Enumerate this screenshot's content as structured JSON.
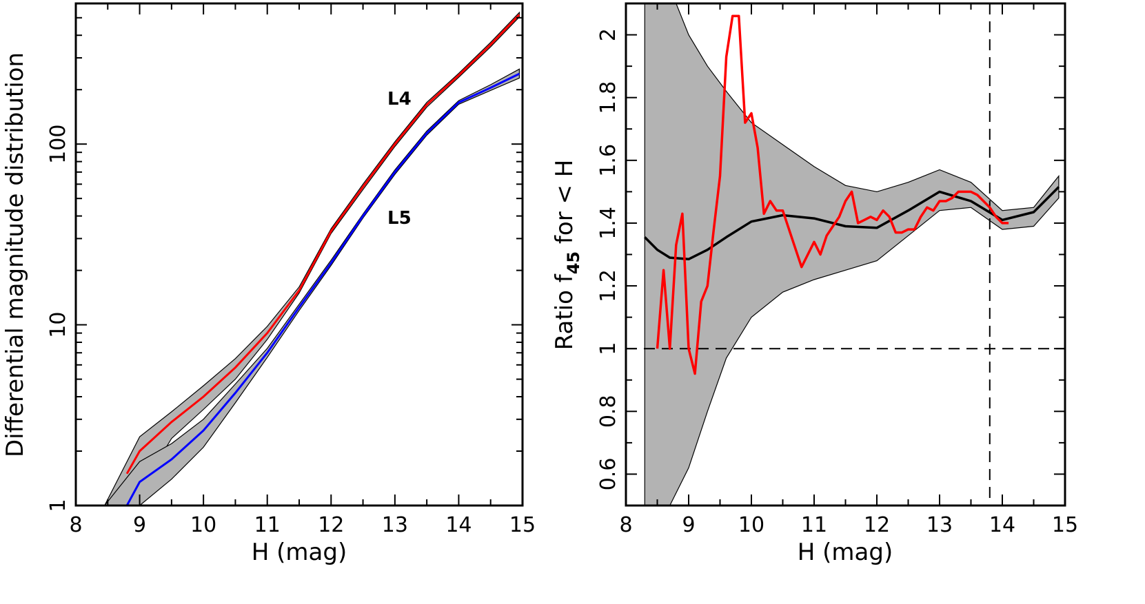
{
  "chart_data": [
    {
      "type": "line",
      "xlabel": "H (mag)",
      "ylabel": "Differential magnitude distribution",
      "xlim": [
        8,
        15
      ],
      "ylim": [
        1,
        600
      ],
      "yscale": "log",
      "xticks": [
        "8",
        "9",
        "10",
        "11",
        "12",
        "13",
        "14",
        "15"
      ],
      "yticks": [
        "1",
        "10",
        "100"
      ],
      "ytick_values": [
        1,
        10,
        100
      ],
      "annotations": [
        {
          "text": "L4",
          "x": 13.15,
          "y": 195
        },
        {
          "text": "L5",
          "x": 13.15,
          "y": 44
        }
      ],
      "series": [
        {
          "color": "#ff0000",
          "x": [
            8.8,
            9.0,
            9.5,
            10.0,
            10.5,
            11.0,
            11.5,
            12.0,
            12.5,
            13.0,
            13.5,
            14.0,
            14.5,
            14.95
          ],
          "y": [
            1.5,
            2.0,
            2.9,
            4.0,
            5.8,
            9.0,
            15.5,
            33,
            58,
            100,
            165,
            240,
            355,
            520
          ]
        },
        {
          "color": "#0000ff",
          "x": [
            8.8,
            9.0,
            9.5,
            10.0,
            10.5,
            11.0,
            11.5,
            12.0,
            12.5,
            13.0,
            13.5,
            14.0,
            14.5,
            14.95
          ],
          "y": [
            1.0,
            1.35,
            1.8,
            2.6,
            4.2,
            7.0,
            12.5,
            22,
            40,
            70,
            115,
            170,
            205,
            245
          ]
        }
      ],
      "bands": [
        {
          "x": [
            8.45,
            9.0,
            9.5,
            10.0,
            10.5,
            11.0,
            11.5,
            12.0,
            12.5,
            13.0,
            13.5,
            14.0,
            14.5,
            14.95
          ],
          "lower": [
            1.0,
            1.2,
            2.35,
            3.4,
            5.0,
            8.3,
            15.0,
            32,
            56,
            97,
            160,
            234,
            345,
            505
          ],
          "upper": [
            1.0,
            2.4,
            3.3,
            4.6,
            6.5,
            9.8,
            16.2,
            34,
            60,
            103,
            170,
            246,
            365,
            535
          ]
        },
        {
          "x": [
            8.45,
            9.0,
            9.5,
            10.0,
            10.5,
            11.0,
            11.5,
            12.0,
            12.5,
            13.0,
            13.5,
            14.0,
            14.5,
            14.95
          ],
          "lower": [
            1.0,
            1.0,
            1.4,
            2.1,
            3.7,
            6.6,
            12.0,
            21.3,
            39,
            68,
            112,
            166,
            198,
            232
          ],
          "upper": [
            1.0,
            1.75,
            2.2,
            3.0,
            4.7,
            7.4,
            13.0,
            22.8,
            41,
            72,
            118,
            174,
            213,
            260
          ]
        }
      ]
    },
    {
      "type": "line",
      "xlabel": "H (mag)",
      "ylabel_parts": [
        "Ratio  f",
        "45",
        "  for  < H"
      ],
      "xlim": [
        8,
        15
      ],
      "ylim": [
        0.5,
        2.1
      ],
      "xticks": [
        "8",
        "9",
        "10",
        "11",
        "12",
        "13",
        "14",
        "15"
      ],
      "yticks": [
        "0.6",
        "0.8",
        "1",
        "1.2",
        "1.4",
        "1.6",
        "1.8",
        "2"
      ],
      "ytick_values": [
        0.6,
        0.8,
        1.0,
        1.2,
        1.4,
        1.6,
        1.8,
        2.0
      ],
      "hline": 1.0,
      "vline": 13.8,
      "band": {
        "x": [
          8.3,
          8.5,
          8.7,
          9.0,
          9.3,
          9.6,
          10.0,
          10.5,
          11.0,
          11.5,
          12.0,
          12.5,
          13.0,
          13.5,
          14.0,
          14.5,
          14.9
        ],
        "upper": [
          2.2,
          2.2,
          2.15,
          2.0,
          1.9,
          1.82,
          1.72,
          1.65,
          1.58,
          1.52,
          1.5,
          1.53,
          1.57,
          1.53,
          1.44,
          1.45,
          1.55
        ],
        "lower": [
          0.5,
          0.5,
          0.5,
          0.62,
          0.8,
          0.97,
          1.1,
          1.18,
          1.22,
          1.25,
          1.28,
          1.36,
          1.44,
          1.45,
          1.38,
          1.39,
          1.48
        ]
      },
      "series": [
        {
          "color": "#000000",
          "x": [
            8.3,
            8.5,
            8.7,
            9.0,
            9.3,
            9.6,
            10.0,
            10.5,
            11.0,
            11.5,
            12.0,
            12.5,
            13.0,
            13.5,
            14.0,
            14.5,
            14.9
          ],
          "y": [
            1.355,
            1.315,
            1.29,
            1.285,
            1.315,
            1.355,
            1.405,
            1.425,
            1.415,
            1.39,
            1.385,
            1.44,
            1.5,
            1.47,
            1.41,
            1.435,
            1.515
          ]
        },
        {
          "color": "#ff0000",
          "x": [
            8.5,
            8.6,
            8.7,
            8.8,
            8.9,
            9.0,
            9.1,
            9.2,
            9.3,
            9.4,
            9.5,
            9.6,
            9.7,
            9.8,
            9.9,
            10.0,
            10.1,
            10.2,
            10.3,
            10.4,
            10.5,
            10.6,
            10.7,
            10.8,
            10.9,
            11.0,
            11.1,
            11.2,
            11.3,
            11.4,
            11.5,
            11.6,
            11.7,
            11.8,
            11.9,
            12.0,
            12.1,
            12.2,
            12.3,
            12.4,
            12.5,
            12.6,
            12.7,
            12.8,
            12.9,
            13.0,
            13.1,
            13.2,
            13.3,
            13.4,
            13.5,
            13.6,
            13.7,
            13.8,
            13.9,
            14.0,
            14.1
          ],
          "y": [
            1.0,
            1.25,
            1.0,
            1.33,
            1.43,
            1.0,
            0.92,
            1.15,
            1.2,
            1.38,
            1.55,
            1.93,
            2.06,
            2.06,
            1.72,
            1.75,
            1.64,
            1.43,
            1.47,
            1.44,
            1.44,
            1.38,
            1.32,
            1.26,
            1.3,
            1.34,
            1.3,
            1.36,
            1.39,
            1.42,
            1.47,
            1.5,
            1.4,
            1.41,
            1.42,
            1.41,
            1.44,
            1.42,
            1.37,
            1.37,
            1.38,
            1.38,
            1.42,
            1.45,
            1.44,
            1.47,
            1.47,
            1.48,
            1.5,
            1.5,
            1.5,
            1.49,
            1.47,
            1.45,
            1.42,
            1.4,
            1.4
          ]
        }
      ]
    }
  ]
}
